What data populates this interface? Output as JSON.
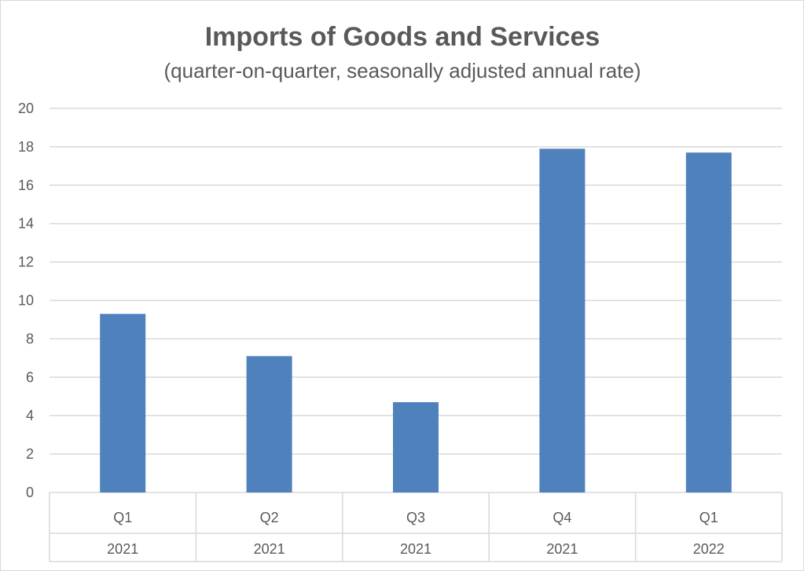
{
  "chart_data": {
    "type": "bar",
    "title": "Imports of Goods and Services",
    "subtitle": "(quarter-on-quarter, seasonally adjusted annual rate)",
    "xlabel": "",
    "ylabel": "",
    "ylim": [
      0,
      20
    ],
    "yticks": [
      0,
      2,
      4,
      6,
      8,
      10,
      12,
      14,
      16,
      18,
      20
    ],
    "grid": true,
    "legend": "none",
    "categories": [
      {
        "quarter": "Q1",
        "year": "2021"
      },
      {
        "quarter": "Q2",
        "year": "2021"
      },
      {
        "quarter": "Q3",
        "year": "2021"
      },
      {
        "quarter": "Q4",
        "year": "2021"
      },
      {
        "quarter": "Q1",
        "year": "2022"
      }
    ],
    "series": [
      {
        "name": "Imports of Goods and Services",
        "values": [
          9.3,
          7.1,
          4.7,
          17.9,
          17.7
        ]
      }
    ],
    "colors": {
      "bar": "#4f81bd",
      "grid": "#d9d9d9",
      "text": "#595959"
    }
  }
}
